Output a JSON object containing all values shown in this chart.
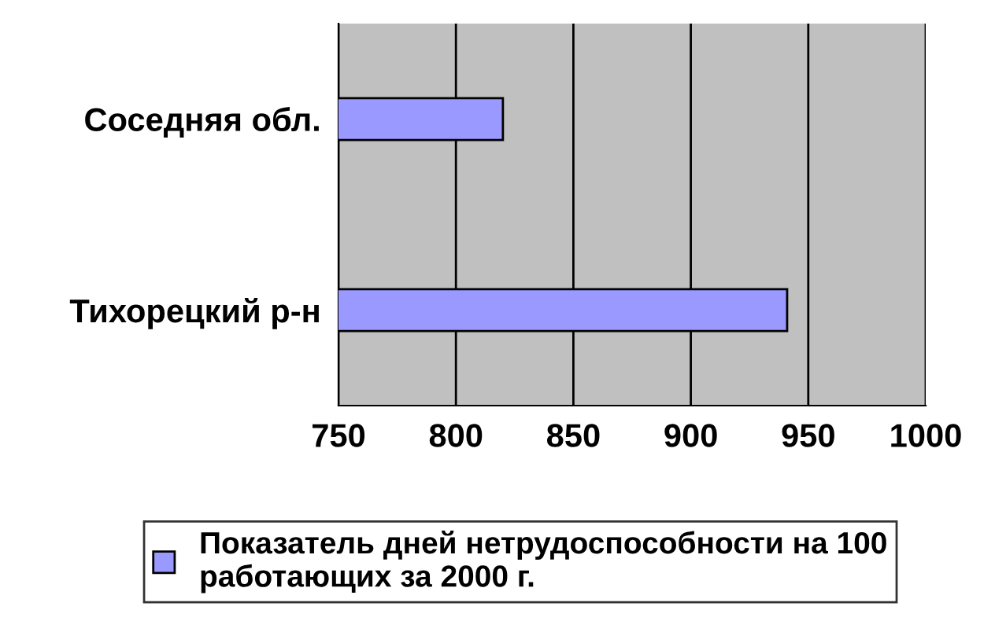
{
  "chart_data": {
    "type": "bar",
    "orientation": "horizontal",
    "categories": [
      "Соседняя обл.",
      "Тихорецкий р-н"
    ],
    "series": [
      {
        "name": "Показатель дней нетрудоспособности на 100\nработающих за 2000 г.",
        "color": "#9999ff",
        "values": [
          820,
          941
        ]
      }
    ],
    "xlim": [
      750,
      1000
    ],
    "xticks": [
      750,
      800,
      850,
      900,
      950,
      1000
    ],
    "grid": "x",
    "legend": "bottom"
  }
}
